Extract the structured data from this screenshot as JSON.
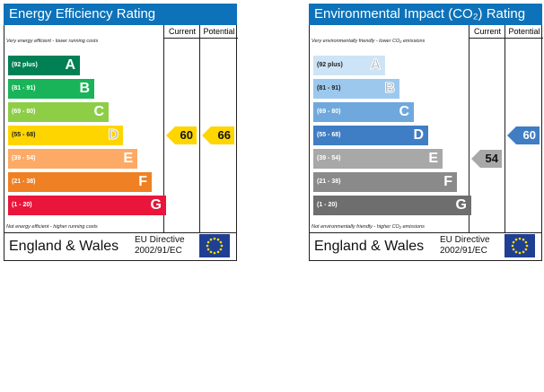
{
  "chart_data": [
    {
      "type": "bar",
      "title": "Energy Efficiency Rating",
      "header": {
        "current": "Current",
        "potential": "Potential"
      },
      "top_note": "Very energy efficient - lower running costs",
      "bottom_note": "Not energy efficient - higher running costs",
      "categories": [
        "(92 plus)",
        "(81 - 91)",
        "(69 - 80)",
        "(55 - 68)",
        "(39 - 54)",
        "(21 - 38)",
        "(1 - 20)"
      ],
      "letters": [
        "A",
        "B",
        "C",
        "D",
        "E",
        "F",
        "G"
      ],
      "colors": [
        "#008054",
        "#19b459",
        "#8dce46",
        "#ffd500",
        "#fcaa65",
        "#ef8023",
        "#e9153b"
      ],
      "current": 60,
      "potential": 66,
      "footer": {
        "region": "England & Wales",
        "directive_line1": "EU Directive",
        "directive_line2": "2002/91/EC"
      }
    },
    {
      "type": "bar",
      "title": "Environmental Impact (CO₂) Rating",
      "header": {
        "current": "Current",
        "potential": "Potential"
      },
      "top_note": "Very environmentally friendly - lower CO₂ emissions",
      "bottom_note": "Not environmentally friendly - higher CO₂ emissions",
      "categories": [
        "(92 plus)",
        "(81 - 91)",
        "(69 - 80)",
        "(55 - 68)",
        "(39 - 54)",
        "(21 - 38)",
        "(1 - 20)"
      ],
      "letters": [
        "A",
        "B",
        "C",
        "D",
        "E",
        "F",
        "G"
      ],
      "colors": [
        "#cde4f6",
        "#9cc8ee",
        "#6fa8dc",
        "#3f7dc4",
        "#a8a8a8",
        "#8a8a8a",
        "#6e6e6e"
      ],
      "current": 54,
      "potential": 60,
      "footer": {
        "region": "England & Wales",
        "directive_line1": "EU Directive",
        "directive_line2": "2002/91/EC"
      }
    }
  ]
}
